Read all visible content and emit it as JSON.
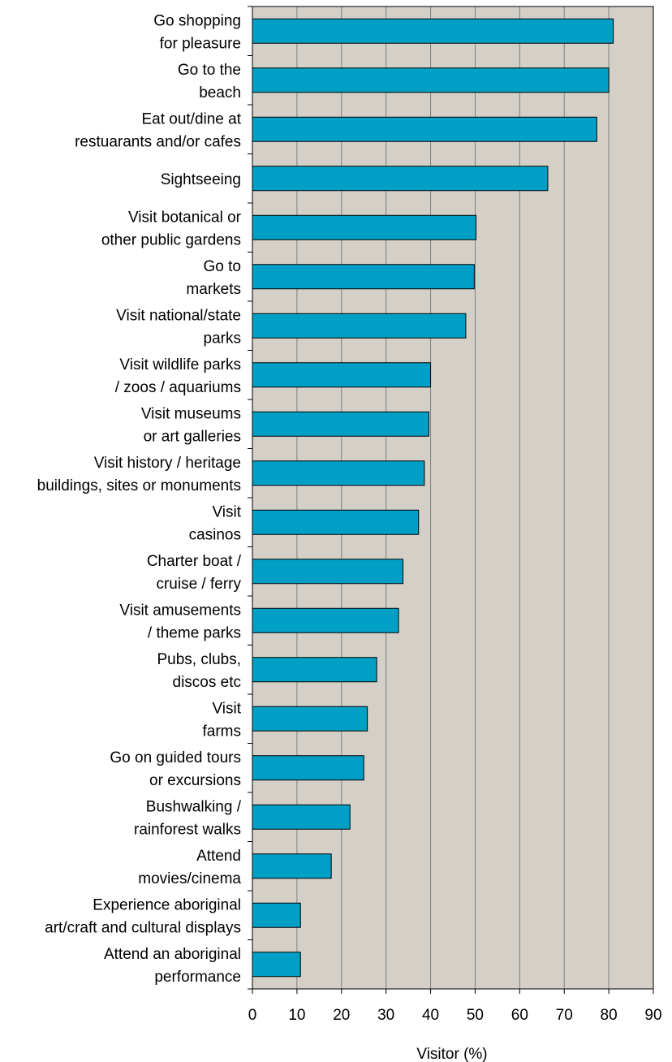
{
  "chart_data": {
    "type": "bar",
    "orientation": "horizontal",
    "categories": [
      [
        "Go shopping",
        "for pleasure"
      ],
      [
        "Go to the",
        "beach"
      ],
      [
        "Eat out/dine at",
        "restuarants and/or cafes"
      ],
      [
        "Sightseeing"
      ],
      [
        "Visit botanical or",
        "other public gardens"
      ],
      [
        "Go to",
        "markets"
      ],
      [
        "Visit national/state",
        "parks"
      ],
      [
        "Visit wildlife parks",
        "/ zoos / aquariums"
      ],
      [
        "Visit museums",
        "or art galleries"
      ],
      [
        "Visit history / heritage",
        "buildings, sites or monuments"
      ],
      [
        "Visit",
        "casinos"
      ],
      [
        "Charter boat /",
        "cruise / ferry"
      ],
      [
        "Visit amusements",
        "/ theme parks"
      ],
      [
        "Pubs, clubs,",
        "discos etc"
      ],
      [
        "Visit",
        "farms"
      ],
      [
        "Go on guided tours",
        "or excursions"
      ],
      [
        "Bushwalking /",
        "rainforest walks"
      ],
      [
        "Attend",
        "movies/cinema"
      ],
      [
        "Experience aboriginal",
        "art/craft and cultural displays"
      ],
      [
        "Attend an aboriginal",
        "performance"
      ]
    ],
    "values": [
      81,
      80,
      77.3,
      66.3,
      50.2,
      49.8,
      47.9,
      40,
      39.6,
      38.6,
      37.3,
      33.8,
      32.8,
      27.9,
      25.8,
      25,
      21.9,
      17.7,
      10.8,
      10.8
    ],
    "xlabel": "Visitor (%)",
    "ylabel": "",
    "xlim": [
      0,
      90
    ],
    "xticks": [
      "0",
      "10",
      "20",
      "30",
      "40",
      "50",
      "60",
      "70",
      "80",
      "90"
    ],
    "grid": "vertical",
    "colors": {
      "bar_fill": "#00A0C6",
      "bar_stroke": "#000000",
      "plot_background": "#D4D0C8",
      "gridline": "#808080"
    }
  }
}
